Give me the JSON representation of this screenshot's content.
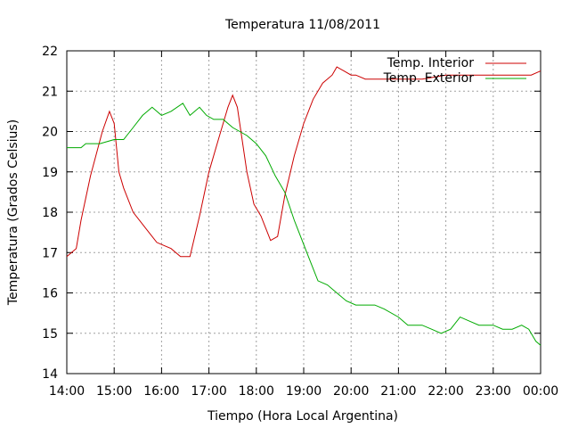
{
  "chart_data": {
    "type": "line",
    "title": "Temperatura 11/08/2011",
    "xlabel": "Tiempo (Hora Local Argentina)",
    "ylabel": "Temperatura (Grados Celsius)",
    "x_ticks": [
      "14:00",
      "15:00",
      "16:00",
      "17:00",
      "18:00",
      "19:00",
      "20:00",
      "21:00",
      "22:00",
      "23:00",
      "00:00"
    ],
    "xlim": [
      14.0,
      24.0
    ],
    "ylim": [
      14,
      22
    ],
    "y_ticks": [
      14,
      15,
      16,
      17,
      18,
      19,
      20,
      21,
      22
    ],
    "grid": true,
    "legend": "top-right",
    "series": [
      {
        "name": "Temp. Interior",
        "color": "#cc0000",
        "x": [
          14.0,
          14.2,
          14.3,
          14.5,
          14.75,
          14.9,
          15.0,
          15.1,
          15.2,
          15.4,
          15.6,
          15.8,
          15.9,
          16.0,
          16.2,
          16.4,
          16.5,
          16.6,
          16.8,
          17.0,
          17.2,
          17.4,
          17.5,
          17.6,
          17.8,
          17.95,
          18.1,
          18.3,
          18.45,
          18.6,
          18.8,
          19.0,
          19.2,
          19.4,
          19.6,
          19.7,
          19.85,
          20.0,
          20.1,
          20.3,
          20.6,
          21.0,
          21.5,
          22.0,
          22.5,
          23.0,
          23.5,
          23.8,
          24.0
        ],
        "y": [
          16.9,
          17.1,
          17.8,
          18.9,
          20.0,
          20.5,
          20.2,
          19.0,
          18.6,
          18.0,
          17.7,
          17.4,
          17.25,
          17.2,
          17.1,
          16.9,
          16.9,
          16.9,
          17.9,
          19.0,
          19.8,
          20.6,
          20.9,
          20.6,
          19.0,
          18.2,
          17.9,
          17.3,
          17.4,
          18.4,
          19.4,
          20.2,
          20.8,
          21.2,
          21.4,
          21.6,
          21.5,
          21.4,
          21.4,
          21.3,
          21.3,
          21.3,
          21.3,
          21.4,
          21.4,
          21.4,
          21.4,
          21.4,
          21.5
        ]
      },
      {
        "name": "Temp. Exterior",
        "color": "#00aa00",
        "x": [
          14.0,
          14.3,
          14.4,
          14.7,
          15.0,
          15.2,
          15.4,
          15.6,
          15.8,
          16.0,
          16.2,
          16.45,
          16.6,
          16.8,
          16.95,
          17.1,
          17.3,
          17.5,
          17.8,
          18.0,
          18.2,
          18.4,
          18.6,
          18.8,
          19.0,
          19.1,
          19.3,
          19.5,
          19.7,
          19.9,
          20.1,
          20.5,
          20.7,
          21.0,
          21.2,
          21.5,
          21.7,
          21.9,
          22.1,
          22.3,
          22.5,
          22.7,
          23.0,
          23.2,
          23.4,
          23.6,
          23.75,
          23.9,
          24.0
        ],
        "y": [
          19.6,
          19.6,
          19.7,
          19.7,
          19.8,
          19.8,
          20.1,
          20.4,
          20.6,
          20.4,
          20.5,
          20.7,
          20.4,
          20.6,
          20.4,
          20.3,
          20.3,
          20.1,
          19.9,
          19.7,
          19.4,
          18.9,
          18.5,
          17.8,
          17.2,
          16.9,
          16.3,
          16.2,
          16.0,
          15.8,
          15.7,
          15.7,
          15.6,
          15.4,
          15.2,
          15.2,
          15.1,
          15.0,
          15.1,
          15.4,
          15.3,
          15.2,
          15.2,
          15.1,
          15.1,
          15.2,
          15.1,
          14.8,
          14.7
        ]
      }
    ]
  }
}
